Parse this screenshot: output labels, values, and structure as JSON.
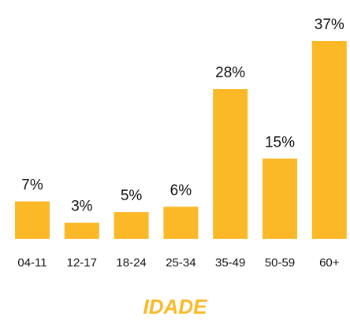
{
  "chart_data": {
    "type": "bar",
    "title": "IDADE",
    "categories": [
      "04-11",
      "12-17",
      "18-24",
      "25-34",
      "35-49",
      "50-59",
      "60+"
    ],
    "values": [
      7,
      3,
      5,
      6,
      28,
      15,
      37
    ],
    "value_labels": [
      "7%",
      "3%",
      "5%",
      "6%",
      "28%",
      "15%",
      "37%"
    ],
    "color": "#fbb827"
  }
}
